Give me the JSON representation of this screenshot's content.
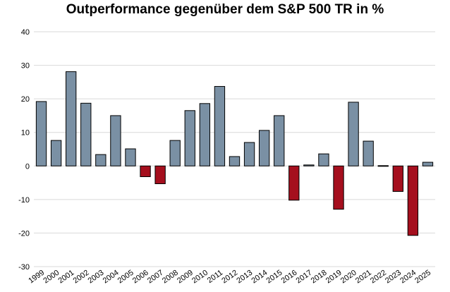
{
  "chart_data": {
    "type": "bar",
    "title": "Outperformance gegenüber dem S&P 500 TR in %",
    "xlabel": "",
    "ylabel": "",
    "ylim": [
      -30,
      40
    ],
    "yticks": [
      40,
      30,
      20,
      10,
      0,
      -10,
      -20,
      -30
    ],
    "grid": true,
    "categories": [
      "1999",
      "2000",
      "2001",
      "2002",
      "2003",
      "2004",
      "2005",
      "2006",
      "2007",
      "2008",
      "2009",
      "2010",
      "2011",
      "2012",
      "2013",
      "2014",
      "2015",
      "2016",
      "2017",
      "2018",
      "2019",
      "2020",
      "2021",
      "2022",
      "2023",
      "2024",
      "2025"
    ],
    "values": [
      19.2,
      7.6,
      28.1,
      18.7,
      3.4,
      15.0,
      5.1,
      -3.2,
      -5.3,
      7.6,
      16.5,
      18.6,
      23.7,
      2.8,
      7.0,
      10.6,
      15.0,
      -10.2,
      0.3,
      3.6,
      -12.9,
      19.0,
      7.4,
      0.1,
      -7.6,
      -20.7,
      1.1
    ],
    "colors": {
      "positive": "#7a90a4",
      "negative": "#a50f1e",
      "grid": "#d9d9d9"
    }
  }
}
